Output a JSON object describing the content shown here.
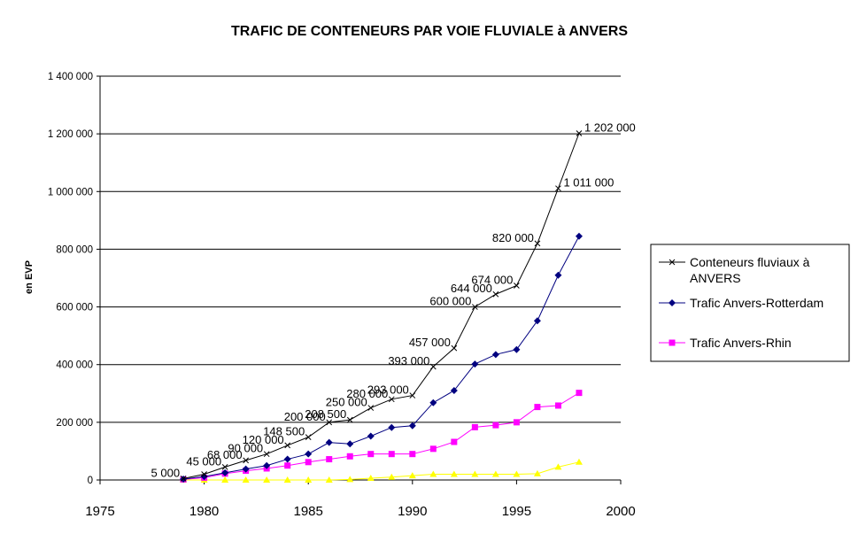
{
  "chart_data": {
    "type": "line",
    "title": "TRAFIC DE CONTENEURS PAR VOIE FLUVIALE à ANVERS",
    "ylabel": "en EVP",
    "xlabel": "",
    "xlim": [
      1975,
      2000
    ],
    "ylim": [
      0,
      1400000
    ],
    "x_ticks": [
      1975,
      1980,
      1985,
      1990,
      1995,
      2000
    ],
    "x_tick_labels": [
      "1975",
      "1980",
      "1985",
      "1990",
      "1995",
      "2000"
    ],
    "y_ticks": [
      0,
      200000,
      400000,
      600000,
      800000,
      1000000,
      1200000,
      1400000
    ],
    "y_tick_labels": [
      "0",
      "200 000",
      "400 000",
      "600 000",
      "800 000",
      "1 000 000",
      "1 200 000",
      "1 400 000"
    ],
    "grid": "horizontal",
    "legend_position": "right",
    "series": [
      {
        "name": "Conteneurs fluviaux à ANVERS",
        "color": "#000000",
        "marker": "x",
        "x": [
          1979,
          1980,
          1981,
          1982,
          1983,
          1984,
          1985,
          1986,
          1987,
          1988,
          1989,
          1990,
          1991,
          1992,
          1993,
          1994,
          1995,
          1996,
          1997,
          1998
        ],
        "values": [
          5000,
          20000,
          45000,
          68000,
          90000,
          120000,
          148500,
          200000,
          208500,
          250000,
          280000,
          293000,
          393000,
          457000,
          600000,
          644000,
          674000,
          820000,
          1011000,
          1202000
        ],
        "data_labels": [
          "5 000",
          null,
          "45 000",
          "68 000",
          "90 000",
          "120 000",
          "148 500",
          "200 000",
          "208 500",
          "250 000",
          "280 000",
          "293 000",
          "393 000",
          "457 000",
          "600 000",
          "644 000",
          "674 000",
          "820 000",
          "1 011 000",
          "1 202 000"
        ]
      },
      {
        "name": "Trafic Anvers-Rotterdam",
        "color": "#000080",
        "marker": "diamond",
        "x": [
          1979,
          1980,
          1981,
          1982,
          1983,
          1984,
          1985,
          1986,
          1987,
          1988,
          1989,
          1990,
          1991,
          1992,
          1993,
          1994,
          1995,
          1996,
          1997,
          1998
        ],
        "values": [
          3000,
          12000,
          25000,
          38000,
          50000,
          72000,
          90000,
          130000,
          125000,
          152000,
          182000,
          188000,
          268000,
          310000,
          402000,
          435000,
          452000,
          552000,
          710000,
          845000
        ]
      },
      {
        "name": "Trafic Anvers-Rhin",
        "color": "#FF00FF",
        "marker": "square",
        "x": [
          1979,
          1980,
          1981,
          1982,
          1983,
          1984,
          1985,
          1986,
          1987,
          1988,
          1989,
          1990,
          1991,
          1992,
          1993,
          1994,
          1995,
          1996,
          1997,
          1998
        ],
        "values": [
          2000,
          8000,
          22000,
          32000,
          40000,
          50000,
          62000,
          72000,
          82000,
          90000,
          90000,
          90000,
          108000,
          132000,
          183000,
          190000,
          200000,
          253000,
          258000,
          302000
        ]
      },
      {
        "name": "",
        "color": "#FFFF00",
        "marker": "triangle",
        "x": [
          1979,
          1980,
          1981,
          1982,
          1983,
          1984,
          1985,
          1986,
          1987,
          1988,
          1989,
          1990,
          1991,
          1992,
          1993,
          1994,
          1995,
          1996,
          1997,
          1998
        ],
        "values": [
          0,
          0,
          0,
          0,
          0,
          0,
          0,
          0,
          2000,
          6000,
          10000,
          15000,
          20000,
          20000,
          20000,
          20000,
          20000,
          22000,
          45000,
          62000
        ]
      }
    ]
  }
}
